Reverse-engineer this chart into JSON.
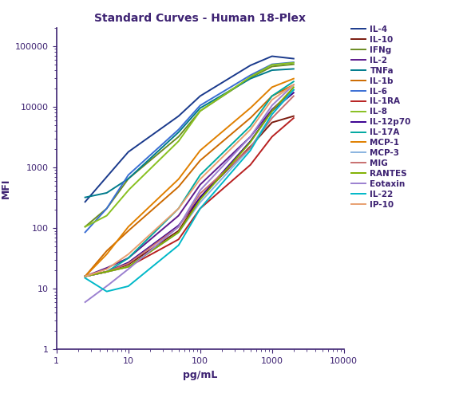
{
  "title": "Standard Curves - Human 18-Plex",
  "xlabel": "pg/mL",
  "ylabel": "MFI",
  "xlim": [
    2,
    8000
  ],
  "ylim": [
    1,
    200000
  ],
  "title_color": "#3d2272",
  "axis_color": "#3d2272",
  "series": [
    {
      "name": "IL-4",
      "color": "#1a3a8c",
      "x": [
        2.5,
        5,
        10,
        50,
        100,
        500,
        1000,
        2000
      ],
      "y": [
        270,
        700,
        1800,
        7000,
        15000,
        48000,
        68000,
        62000
      ]
    },
    {
      "name": "IL-10",
      "color": "#7b1a0e",
      "x": [
        2.5,
        5,
        10,
        50,
        100,
        500,
        1000,
        2000
      ],
      "y": [
        16,
        19,
        25,
        90,
        320,
        2200,
        5500,
        7000
      ]
    },
    {
      "name": "IFNg",
      "color": "#6b8c23",
      "x": [
        2.5,
        5,
        10,
        50,
        100,
        500,
        1000,
        2000
      ],
      "y": [
        105,
        210,
        650,
        3200,
        8500,
        30000,
        46000,
        50000
      ]
    },
    {
      "name": "IL-2",
      "color": "#5c1a8c",
      "x": [
        2.5,
        5,
        10,
        50,
        100,
        500,
        1000,
        2000
      ],
      "y": [
        16,
        22,
        32,
        160,
        520,
        3200,
        9000,
        19000
      ]
    },
    {
      "name": "TNFa",
      "color": "#007b8c",
      "x": [
        2.5,
        5,
        10,
        50,
        100,
        500,
        1000,
        2000
      ],
      "y": [
        320,
        380,
        650,
        3800,
        9500,
        29000,
        40000,
        42000
      ]
    },
    {
      "name": "IL-1b",
      "color": "#cc6a00",
      "x": [
        2.5,
        5,
        10,
        50,
        100,
        500,
        1000,
        2000
      ],
      "y": [
        16,
        42,
        90,
        480,
        1300,
        6500,
        15000,
        23000
      ]
    },
    {
      "name": "IL-6",
      "color": "#3a6ed4",
      "x": [
        2.5,
        5,
        10,
        50,
        100,
        500,
        1000,
        2000
      ],
      "y": [
        85,
        210,
        750,
        4200,
        10500,
        33000,
        50000,
        54000
      ]
    },
    {
      "name": "IL-1RA",
      "color": "#b82020",
      "x": [
        2.5,
        5,
        10,
        50,
        100,
        500,
        1000,
        2000
      ],
      "y": [
        16,
        19,
        23,
        65,
        210,
        1100,
        3200,
        6500
      ]
    },
    {
      "name": "IL-8",
      "color": "#88c020",
      "x": [
        2.5,
        5,
        10,
        50,
        100,
        500,
        1000,
        2000
      ],
      "y": [
        105,
        160,
        420,
        2700,
        8500,
        31000,
        49000,
        53000
      ]
    },
    {
      "name": "IL-12p70",
      "color": "#3a0090",
      "x": [
        2.5,
        5,
        10,
        50,
        100,
        500,
        1000,
        2000
      ],
      "y": [
        16,
        19,
        27,
        110,
        320,
        2700,
        8500,
        17000
      ]
    },
    {
      "name": "IL-17A",
      "color": "#00a8a0",
      "x": [
        2.5,
        5,
        10,
        50,
        100,
        500,
        1000,
        2000
      ],
      "y": [
        16,
        19,
        32,
        210,
        750,
        4800,
        15000,
        26000
      ]
    },
    {
      "name": "MCP-1",
      "color": "#e08000",
      "x": [
        2.5,
        5,
        10,
        50,
        100,
        500,
        1000,
        2000
      ],
      "y": [
        16,
        37,
        105,
        640,
        1900,
        9500,
        21000,
        29000
      ]
    },
    {
      "name": "MCP-3",
      "color": "#8ab4e0",
      "x": [
        2.5,
        5,
        10,
        50,
        100,
        500,
        1000,
        2000
      ],
      "y": [
        16,
        19,
        23,
        85,
        265,
        2100,
        7500,
        19000
      ]
    },
    {
      "name": "MIG",
      "color": "#c87070",
      "x": [
        2.5,
        5,
        10,
        50,
        100,
        500,
        1000,
        2000
      ],
      "y": [
        16,
        19,
        26,
        105,
        370,
        2100,
        6500,
        15000
      ]
    },
    {
      "name": "RANTES",
      "color": "#80b000",
      "x": [
        2.5,
        5,
        10,
        50,
        100,
        500,
        1000,
        2000
      ],
      "y": [
        16,
        19,
        23,
        85,
        295,
        2600,
        8500,
        21000
      ]
    },
    {
      "name": "Eotaxin",
      "color": "#9b80d0",
      "x": [
        2.5,
        5,
        10,
        50,
        100,
        500,
        1000,
        2000
      ],
      "y": [
        6,
        11,
        21,
        105,
        420,
        3200,
        10500,
        23000
      ]
    },
    {
      "name": "IL-22",
      "color": "#00b8c8",
      "x": [
        2.5,
        5,
        10,
        50,
        100,
        500,
        1000,
        2000
      ],
      "y": [
        15,
        9,
        11,
        52,
        210,
        1900,
        7500,
        19000
      ]
    },
    {
      "name": "IP-10",
      "color": "#e8a070",
      "x": [
        2.5,
        5,
        10,
        50,
        100,
        500,
        1000,
        2000
      ],
      "y": [
        16,
        21,
        37,
        210,
        640,
        4200,
        13000,
        23000
      ]
    }
  ]
}
